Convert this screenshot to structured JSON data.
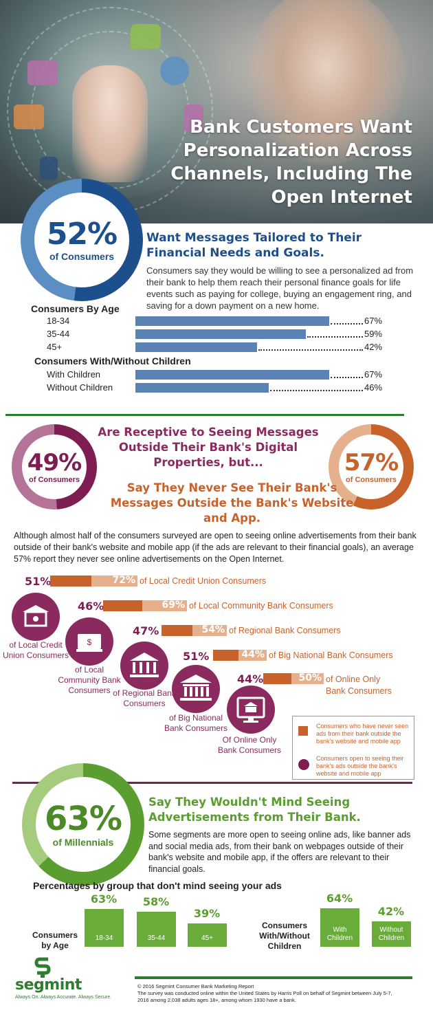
{
  "hero": {
    "title": "Bank Customers Want Personalization Across Channels, Including The Open Internet"
  },
  "section1": {
    "stat_value": "52%",
    "stat_label": "of Consumers",
    "headline": "Want Messages Tailored to Their Financial Needs and Goals.",
    "body": "Consumers say they would be willing to see a personalized ad from their bank to help them reach their personal finance goals for life events such as paying for college, buying an engagement ring, and saving for a down payment on a new home.",
    "by_age": {
      "title": "Consumers By Age",
      "rows": [
        {
          "label": "18-34",
          "value": 67,
          "pct": "67%"
        },
        {
          "label": "35-44",
          "value": 59,
          "pct": "59%"
        },
        {
          "label": "45+",
          "value": 42,
          "pct": "42%"
        }
      ]
    },
    "by_children": {
      "title": "Consumers With/Without Children",
      "rows": [
        {
          "label": "With Children",
          "value": 67,
          "pct": "67%"
        },
        {
          "label": "Without Children",
          "value": 46,
          "pct": "46%"
        }
      ]
    },
    "colors": {
      "primary": "#1d4f8c",
      "bar": "#5b82b4"
    }
  },
  "section2": {
    "left_stat_value": "49%",
    "left_stat_label": "of Consumers",
    "right_stat_value": "57%",
    "right_stat_label": "of Consumers",
    "headline_receptive": "Are Receptive to Seeing Messages Outside Their Bank's Digital Properties, but...",
    "headline_never": "Say They Never See Their Bank's Messages Outside the Bank's Website and App.",
    "body": "Although almost half of the consumers surveyed are open to seeing online advertisements from their bank outside of their bank's website and mobile app (if the ads are relevant to their financial goals), an average 57% report they never see online advertisements on the Open Internet.",
    "segments": [
      {
        "open_pct": "51%",
        "never_pct": "72%",
        "never_value": 72,
        "bar_label": "of Local Credit Union Consumers",
        "caption": "of Local Credit Union Consumers",
        "icon": "credit-union-icon"
      },
      {
        "open_pct": "46%",
        "never_pct": "69%",
        "never_value": 69,
        "bar_label": "of Local Community Bank Consumers",
        "caption": "of Local Community Bank Consumers",
        "icon": "community-bank-icon"
      },
      {
        "open_pct": "47%",
        "never_pct": "54%",
        "never_value": 54,
        "bar_label": "of Regional Bank Consumers",
        "caption": "of Regional Bank Consumers",
        "icon": "regional-bank-icon"
      },
      {
        "open_pct": "51%",
        "never_pct": "44%",
        "never_value": 44,
        "bar_label": "of Big National Bank Consumers",
        "caption": "of Big National Bank Consumers",
        "icon": "national-bank-icon"
      },
      {
        "open_pct": "44%",
        "never_pct": "50%",
        "never_value": 50,
        "bar_label": "of Online Only Bank Consumers",
        "caption": "Of Online Only Bank Consumers",
        "icon": "online-bank-icon"
      }
    ],
    "legend": {
      "never_seen": "Consumers who have never seen ads from their bank outside the bank's website and mobile app",
      "open_to": "Consumers open to seeing their bank's ads outside the bank's website and mobile app"
    },
    "colors": {
      "purple": "#7d1d52",
      "orange": "#c8622b",
      "light_orange": "#e6b08c"
    }
  },
  "section3": {
    "stat_value": "63%",
    "stat_label": "of Millennials",
    "headline": "Say They Wouldn't Mind Seeing Advertisements from Their Bank.",
    "body": "Some segments are more open to seeing online ads, like banner ads and social media ads, from their bank on webpages outside of their bank's website and mobile app, if the offers are relevant to their financial goals.",
    "groups_title": "Percentages by group that don't mind seeing your ads",
    "age_group_label": "Consumers by Age",
    "children_group_label": "Consumers With/Without Children",
    "age_bars": [
      {
        "label": "18-34",
        "pct": "63%",
        "value": 63
      },
      {
        "label": "35-44",
        "pct": "58%",
        "value": 58
      },
      {
        "label": "45+",
        "pct": "39%",
        "value": 39
      }
    ],
    "children_bars": [
      {
        "label": "With Children",
        "pct": "64%",
        "value": 64
      },
      {
        "label": "Without Children",
        "pct": "42%",
        "value": 42
      }
    ],
    "colors": {
      "green": "#6aac3a",
      "dark_green": "#4b8a26"
    }
  },
  "footer": {
    "logo_text": "segmint",
    "tagline": "Always On. Always Accurate. Always Secure.",
    "copyright": "© 2016 Segmint Consumer Bank Marketing Report",
    "description": "The survey was conducted online within the United States by Harris Poll on behalf of Segmint between July 5-7, 2016 among 2,038 adults ages 18+, among whom 1930 have a bank."
  }
}
